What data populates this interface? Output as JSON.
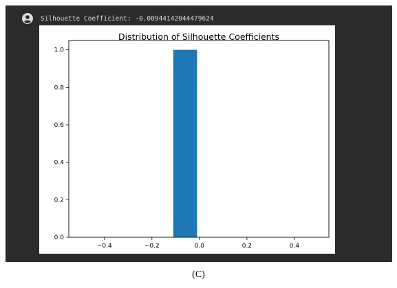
{
  "output": {
    "text": "Silhouette Coefficient: -0.00944142044479624"
  },
  "caption": "(C)",
  "colors": {
    "panel_bg": "#2b2b2b",
    "bar": "#1f77b4",
    "output_text": "#d6d6d6"
  },
  "icons": {
    "avatar": "account-circle-icon"
  },
  "chart_data": {
    "type": "bar",
    "title": "Distribution of Silhouette Coefficients",
    "xlabel": "",
    "ylabel": "",
    "xlim": [
      -0.55,
      0.545
    ],
    "ylim": [
      0,
      1.05
    ],
    "x_ticks": [
      -0.4,
      -0.2,
      0.0,
      0.2,
      0.4
    ],
    "x_tick_labels": [
      "−0.4",
      "−0.2",
      "0.0",
      "0.2",
      "0.4"
    ],
    "y_ticks": [
      0.0,
      0.2,
      0.4,
      0.6,
      0.8,
      1.0
    ],
    "y_tick_labels": [
      "0.0",
      "0.2",
      "0.4",
      "0.6",
      "0.8",
      "1.0"
    ],
    "bars": [
      {
        "x0": -0.11,
        "x1": -0.01,
        "value": 1.0
      }
    ],
    "grid": false,
    "legend": "none"
  }
}
